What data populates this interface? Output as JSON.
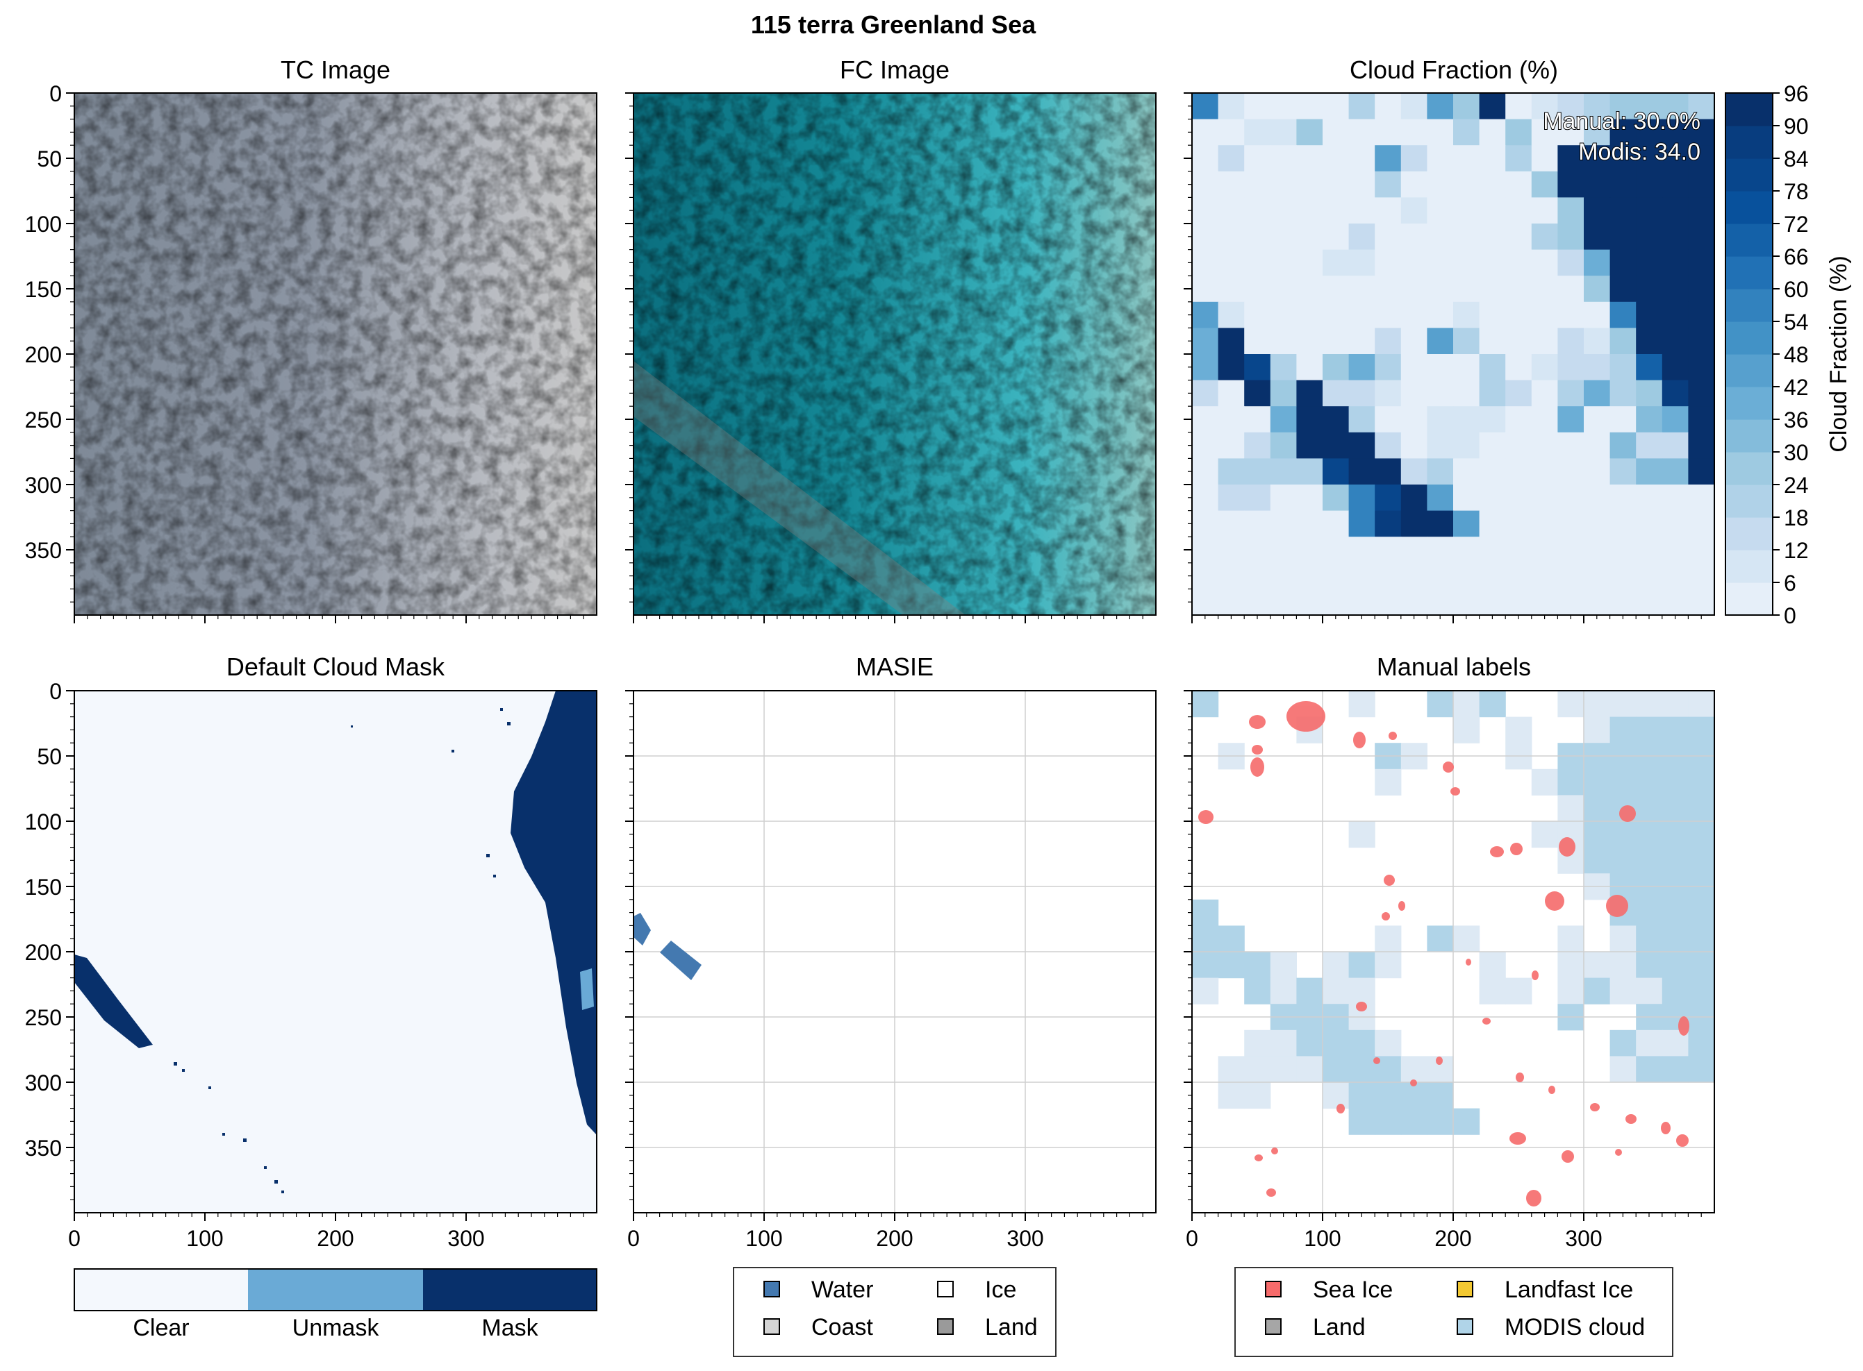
{
  "figure": {
    "title": "115 terra Greenland Sea"
  },
  "panels": {
    "tc": {
      "title": "TC Image"
    },
    "fc": {
      "title": "FC Image"
    },
    "cloud_fraction": {
      "title": "Cloud Fraction (%)",
      "annotations": [
        "Manual: 30.0%",
        "Modis: 34.0"
      ],
      "colorbar": {
        "label": "Cloud Fraction (%)",
        "ticks": [
          0,
          6,
          12,
          18,
          24,
          30,
          36,
          42,
          48,
          54,
          60,
          66,
          72,
          78,
          84,
          90,
          96
        ]
      }
    },
    "cloud_mask": {
      "title": "Default Cloud Mask",
      "legend": [
        "Clear",
        "Unmask",
        "Mask"
      ]
    },
    "masie": {
      "title": "MASIE",
      "legend": [
        "Water",
        "Ice",
        "Coast",
        "Land"
      ]
    },
    "manual": {
      "title": "Manual labels",
      "legend": [
        "Sea Ice",
        "Landfast Ice",
        "Land",
        "MODIS cloud"
      ]
    }
  },
  "axes": {
    "x_ticks": [
      0,
      100,
      200,
      300
    ],
    "y_ticks": [
      0,
      50,
      100,
      150,
      200,
      250,
      300,
      350
    ],
    "range": [
      0,
      400
    ]
  },
  "colors": {
    "cloud_clear": "#f4f8fd",
    "cloud_unmask": "#6aaad6",
    "cloud_mask": "#08306b",
    "masie_water": "#4479b0",
    "masie_ice": "#ffffff",
    "masie_coast": "#d4d4d4",
    "masie_land": "#9a9a9a",
    "sea_ice": "#f66b6b",
    "landfast_ice": "#f2c832",
    "land": "#a6a6a6",
    "modis_cloud": "#b0d4e8"
  },
  "chart_data": [
    {
      "type": "heatmap",
      "title": "Cloud Fraction (%)",
      "xlim": [
        0,
        400
      ],
      "ylim": [
        400,
        0
      ],
      "colorbar_label": "Cloud Fraction (%)",
      "colorbar_range": [
        0,
        96
      ],
      "grid_cell_size": 20,
      "description": "20x20 grid of cloud fraction percentages; high values (~96) concentrated on right side and in a diagonal band lower-left",
      "values": [
        [
          60,
          10,
          6,
          6,
          6,
          6,
          24,
          6,
          12,
          48,
          30,
          96,
          6,
          12,
          18,
          24,
          30,
          30,
          30,
          24
        ],
        [
          6,
          6,
          12,
          12,
          30,
          6,
          6,
          6,
          6,
          6,
          24,
          6,
          30,
          6,
          6,
          24,
          96,
          96,
          96,
          96
        ],
        [
          6,
          18,
          6,
          6,
          6,
          6,
          6,
          48,
          18,
          6,
          6,
          6,
          24,
          6,
          96,
          96,
          96,
          96,
          96,
          96
        ],
        [
          6,
          6,
          6,
          6,
          6,
          6,
          6,
          24,
          6,
          6,
          6,
          6,
          6,
          30,
          96,
          96,
          96,
          96,
          96,
          96
        ],
        [
          6,
          6,
          6,
          6,
          6,
          6,
          6,
          6,
          12,
          6,
          6,
          6,
          6,
          6,
          30,
          96,
          96,
          96,
          96,
          96
        ],
        [
          6,
          6,
          6,
          6,
          6,
          6,
          18,
          6,
          6,
          6,
          6,
          6,
          6,
          24,
          30,
          96,
          96,
          96,
          96,
          96
        ],
        [
          6,
          6,
          6,
          6,
          6,
          12,
          12,
          6,
          6,
          6,
          6,
          6,
          6,
          6,
          18,
          42,
          96,
          96,
          96,
          96
        ],
        [
          6,
          6,
          6,
          6,
          6,
          6,
          6,
          6,
          6,
          6,
          6,
          6,
          6,
          6,
          6,
          30,
          96,
          96,
          96,
          96
        ],
        [
          48,
          12,
          6,
          6,
          6,
          6,
          6,
          6,
          6,
          6,
          12,
          6,
          6,
          6,
          6,
          6,
          60,
          96,
          96,
          96
        ],
        [
          42,
          96,
          6,
          6,
          6,
          6,
          6,
          18,
          6,
          48,
          24,
          6,
          6,
          6,
          18,
          12,
          30,
          96,
          96,
          96
        ],
        [
          42,
          96,
          84,
          24,
          6,
          30,
          42,
          24,
          6,
          6,
          6,
          24,
          6,
          12,
          18,
          18,
          24,
          72,
          96,
          96
        ],
        [
          18,
          6,
          96,
          30,
          96,
          18,
          18,
          12,
          6,
          6,
          6,
          24,
          18,
          6,
          24,
          42,
          24,
          30,
          90,
          96
        ],
        [
          6,
          6,
          6,
          42,
          96,
          96,
          24,
          6,
          6,
          12,
          12,
          12,
          6,
          6,
          42,
          6,
          6,
          36,
          42,
          96
        ],
        [
          6,
          6,
          18,
          30,
          96,
          96,
          96,
          18,
          6,
          12,
          12,
          6,
          6,
          6,
          6,
          6,
          36,
          18,
          18,
          96
        ],
        [
          6,
          24,
          24,
          24,
          24,
          84,
          96,
          96,
          18,
          24,
          6,
          6,
          6,
          6,
          6,
          6,
          24,
          36,
          36,
          96
        ],
        [
          6,
          18,
          18,
          6,
          6,
          30,
          60,
          84,
          96,
          48,
          6,
          6,
          6,
          6,
          6,
          6,
          6,
          6,
          6,
          6
        ],
        [
          6,
          6,
          6,
          6,
          6,
          6,
          60,
          90,
          96,
          96,
          48,
          6,
          6,
          6,
          6,
          6,
          6,
          6,
          6,
          6
        ],
        [
          6,
          6,
          6,
          6,
          6,
          6,
          6,
          6,
          6,
          6,
          6,
          6,
          6,
          6,
          6,
          6,
          6,
          6,
          6,
          6
        ],
        [
          6,
          6,
          6,
          6,
          6,
          6,
          6,
          6,
          6,
          6,
          6,
          6,
          6,
          6,
          6,
          6,
          6,
          6,
          6,
          6
        ],
        [
          6,
          6,
          6,
          6,
          6,
          6,
          6,
          6,
          6,
          6,
          6,
          6,
          6,
          6,
          6,
          6,
          6,
          6,
          6,
          6
        ]
      ],
      "annotations": [
        "Manual: 30.0%",
        "Modis: 34.0"
      ]
    },
    {
      "type": "heatmap",
      "title": "Default Cloud Mask",
      "categories": [
        "Clear",
        "Unmask",
        "Mask"
      ],
      "xlim": [
        0,
        400
      ],
      "ylim": [
        400,
        0
      ]
    },
    {
      "type": "heatmap",
      "title": "MASIE",
      "categories": [
        "Water",
        "Ice",
        "Coast",
        "Land"
      ],
      "xlim": [
        0,
        400
      ],
      "ylim": [
        400,
        0
      ],
      "grid": true
    },
    {
      "type": "heatmap",
      "title": "Manual labels",
      "categories": [
        "Sea Ice",
        "Landfast Ice",
        "Land",
        "MODIS cloud"
      ],
      "xlim": [
        0,
        400
      ],
      "ylim": [
        400,
        0
      ],
      "grid": true
    }
  ]
}
